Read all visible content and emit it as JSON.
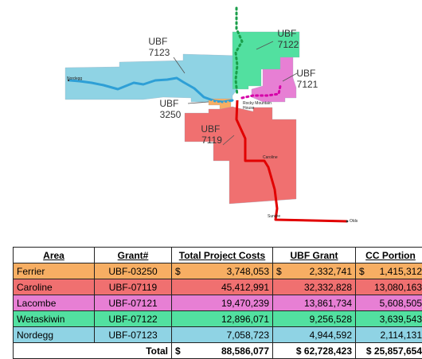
{
  "colors": {
    "ferrier": "#f7ae63",
    "caroline": "#f07070",
    "lacombe": "#e77fd4",
    "wetaskiwin": "#52e0a0",
    "nordegg": "#8fd3e4",
    "river": "#2e9fd6",
    "pipeline_red": "#e10000",
    "pipeline_green": "#1a9e4a",
    "pipeline_magenta": "#d600a8"
  },
  "map": {
    "labels": {
      "ubf7123": [
        "UBF",
        "7123"
      ],
      "ubf7122": [
        "UBF",
        "7122"
      ],
      "ubf7121": [
        "UBF",
        "7121"
      ],
      "ubf3250": [
        "UBF",
        "3250"
      ],
      "ubf7119": [
        "UBF",
        "7119"
      ]
    },
    "towns": {
      "nordegg": "Nordegg",
      "rocky_house": [
        "Rocky Mountain",
        "House"
      ],
      "caroline": "Caroline",
      "sundre": "Sundre",
      "olds": "Olds"
    }
  },
  "table": {
    "headers": [
      "Area",
      "Grant#",
      "Total Project Costs",
      "UBF Grant",
      "CC Portion"
    ],
    "rows": [
      {
        "area": "Ferrier",
        "grant": "UBF-03250",
        "total_cur": "$",
        "total": "3,748,053",
        "ubf_cur": "$",
        "ubf": "2,332,741",
        "cc_cur": "$",
        "cc": "1,415,312",
        "color": "#f7ae63"
      },
      {
        "area": "Caroline",
        "grant": "UBF-07119",
        "total_cur": "",
        "total": "45,412,991",
        "ubf_cur": "",
        "ubf": "32,332,828",
        "cc_cur": "",
        "cc": "13,080,163",
        "color": "#f07070"
      },
      {
        "area": "Lacombe",
        "grant": "UBF-07121",
        "total_cur": "",
        "total": "19,470,239",
        "ubf_cur": "",
        "ubf": "13,861,734",
        "cc_cur": "",
        "cc": "5,608,505",
        "color": "#e77fd4"
      },
      {
        "area": "Wetaskiwin",
        "grant": "UBF-07122",
        "total_cur": "",
        "total": "12,896,071",
        "ubf_cur": "",
        "ubf": "9,256,528",
        "cc_cur": "",
        "cc": "3,639,543",
        "color": "#52e0a0"
      },
      {
        "area": "Nordegg",
        "grant": "UBF-07123",
        "total_cur": "",
        "total": "7,058,723",
        "ubf_cur": "",
        "ubf": "4,944,592",
        "cc_cur": "",
        "cc": "2,114,131",
        "color": "#8fd3e4"
      }
    ],
    "total": {
      "label": "Total",
      "total_cur": "$",
      "total": "88,586,077",
      "ubf": "$ 62,728,423",
      "cc": "$ 25,857,654"
    }
  }
}
